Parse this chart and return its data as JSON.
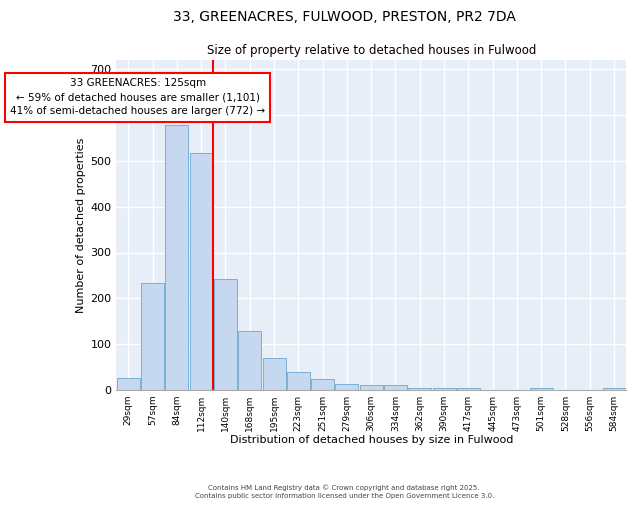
{
  "title1": "33, GREENACRES, FULWOOD, PRESTON, PR2 7DA",
  "title2": "Size of property relative to detached houses in Fulwood",
  "xlabel": "Distribution of detached houses by size in Fulwood",
  "ylabel": "Number of detached properties",
  "bar_labels": [
    "29sqm",
    "57sqm",
    "84sqm",
    "112sqm",
    "140sqm",
    "168sqm",
    "195sqm",
    "223sqm",
    "251sqm",
    "279sqm",
    "306sqm",
    "334sqm",
    "362sqm",
    "390sqm",
    "417sqm",
    "445sqm",
    "473sqm",
    "501sqm",
    "528sqm",
    "556sqm",
    "584sqm"
  ],
  "bar_values": [
    27,
    234,
    578,
    516,
    242,
    128,
    70,
    40,
    25,
    13,
    10,
    10,
    5,
    5,
    5,
    0,
    0,
    5,
    0,
    0,
    5
  ],
  "bar_color": "#c5d8f0",
  "bar_edge_color": "#7aafd4",
  "bg_color": "#e8eef8",
  "grid_color": "#ffffff",
  "red_line_x": 3.5,
  "annotation_line1": "33 GREENACRES: 125sqm",
  "annotation_line2": "← 59% of detached houses are smaller (1,101)",
  "annotation_line3": "41% of semi-detached houses are larger (772) →",
  "ylim": [
    0,
    720
  ],
  "yticks": [
    0,
    100,
    200,
    300,
    400,
    500,
    600,
    700
  ],
  "footer1": "Contains HM Land Registry data © Crown copyright and database right 2025.",
  "footer2": "Contains public sector information licensed under the Open Government Licence 3.0."
}
